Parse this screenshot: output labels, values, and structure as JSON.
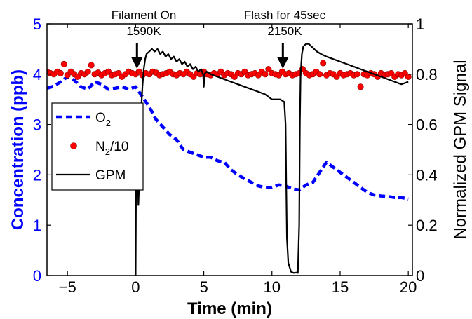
{
  "chart_data": {
    "type": "line",
    "xlabel": "Time (min)",
    "ylabel_left": "Concentration (ppb)",
    "ylabel_right": "Normalized GPM Signal",
    "xlim": [
      -6.5,
      20.3
    ],
    "ylim_left": [
      0,
      5
    ],
    "ylim_right": [
      0,
      1
    ],
    "x_ticks": [
      -5,
      0,
      5,
      10,
      15,
      20
    ],
    "x_tick_labels": [
      "−5",
      "0",
      "5",
      "10",
      "15",
      "20"
    ],
    "y_left_ticks": [
      0,
      1,
      2,
      3,
      4,
      5
    ],
    "y_left_tick_labels": [
      "0",
      "1",
      "2",
      "3",
      "4",
      "5"
    ],
    "y_right_ticks": [
      0,
      0.2,
      0.4,
      0.6,
      0.8,
      1
    ],
    "y_right_tick_labels": [
      "0",
      "0.2",
      "0.4",
      "0.6",
      "0.8",
      "1"
    ],
    "grid": false,
    "legend": {
      "placement": "left",
      "entries": [
        {
          "base": "O",
          "sub": "2",
          "rest": ""
        },
        {
          "base": "N",
          "sub": "2",
          "rest": "/10"
        },
        {
          "base": "GPM",
          "sub": "",
          "rest": ""
        }
      ]
    },
    "annotations": [
      {
        "line1": "Filament On",
        "line2": "1590K",
        "x": 0.1
      },
      {
        "line1": "Flash for 45sec",
        "line2": "2150K",
        "x": 10.8
      }
    ],
    "colors": {
      "o2": "#0000ff",
      "n2": "#ff0000",
      "gpm": "#000000"
    },
    "series": [
      {
        "name": "O2",
        "axis": "left",
        "style": "dashed",
        "x": [
          -6.5,
          -6.0,
          -5.5,
          -5.0,
          -4.5,
          -4.0,
          -3.5,
          -3.0,
          -2.5,
          -2.0,
          -1.5,
          -1.0,
          -0.5,
          0.0,
          0.5,
          1.0,
          1.5,
          2.0,
          2.5,
          3.0,
          3.5,
          4.0,
          4.5,
          5.0,
          5.5,
          6.0,
          6.5,
          7.0,
          7.5,
          8.0,
          8.5,
          9.0,
          9.5,
          10.0,
          10.5,
          11.0,
          11.5,
          12.0,
          12.5,
          13.0,
          13.5,
          14.0,
          14.5,
          15.0,
          15.5,
          16.0,
          16.5,
          17.0,
          17.5,
          18.0,
          18.5,
          19.0,
          19.5,
          20.0
        ],
        "values": [
          3.72,
          3.76,
          3.85,
          3.95,
          3.88,
          3.75,
          3.7,
          3.85,
          3.8,
          3.7,
          3.72,
          3.75,
          3.7,
          3.75,
          3.55,
          3.35,
          3.1,
          2.95,
          2.8,
          2.7,
          2.5,
          2.45,
          2.4,
          2.35,
          2.35,
          2.28,
          2.25,
          2.1,
          2.0,
          1.92,
          1.85,
          1.78,
          1.75,
          1.75,
          1.8,
          1.78,
          1.72,
          1.7,
          1.8,
          1.85,
          2.05,
          2.25,
          2.15,
          2.05,
          1.95,
          1.85,
          1.75,
          1.65,
          1.6,
          1.58,
          1.57,
          1.55,
          1.55,
          1.52
        ]
      },
      {
        "name": "N2/10",
        "axis": "left",
        "style": "markers",
        "x": [
          -6.5,
          -6.25,
          -6.0,
          -5.75,
          -5.5,
          -5.25,
          -5.0,
          -4.75,
          -4.5,
          -4.25,
          -4.0,
          -3.75,
          -3.5,
          -3.25,
          -3.0,
          -2.75,
          -2.5,
          -2.25,
          -2.0,
          -1.75,
          -1.5,
          -1.25,
          -1.0,
          -0.75,
          -0.5,
          -0.25,
          0.0,
          0.25,
          0.5,
          0.75,
          1.0,
          1.25,
          1.5,
          1.75,
          2.0,
          2.25,
          2.5,
          2.75,
          3.0,
          3.25,
          3.5,
          3.75,
          4.0,
          4.25,
          4.5,
          4.75,
          5.0,
          5.25,
          5.5,
          5.75,
          6.0,
          6.25,
          6.5,
          6.75,
          7.0,
          7.25,
          7.5,
          7.75,
          8.0,
          8.25,
          8.5,
          8.75,
          9.0,
          9.25,
          9.5,
          9.75,
          10.0,
          10.25,
          10.5,
          10.75,
          11.0,
          11.25,
          11.5,
          11.75,
          12.0,
          12.25,
          12.5,
          12.75,
          13.0,
          13.25,
          13.5,
          13.75,
          14.0,
          14.25,
          14.5,
          14.75,
          15.0,
          15.25,
          15.5,
          15.75,
          16.0,
          16.25,
          16.5,
          16.75,
          17.0,
          17.25,
          17.5,
          17.75,
          18.0,
          18.25,
          18.5,
          18.75,
          19.0,
          19.25,
          19.5,
          19.75,
          20.0
        ],
        "values": [
          4.05,
          4.02,
          4.0,
          4.05,
          4.02,
          4.2,
          3.98,
          4.05,
          4.0,
          3.95,
          4.02,
          4.0,
          4.05,
          4.18,
          4.0,
          4.03,
          3.98,
          4.02,
          4.05,
          3.98,
          4.0,
          4.02,
          3.95,
          4.0,
          4.05,
          4.02,
          4.0,
          4.05,
          3.98,
          4.02,
          4.0,
          4.05,
          4.03,
          3.98,
          4.0,
          4.02,
          4.05,
          4.0,
          3.98,
          4.02,
          4.0,
          4.05,
          4.0,
          3.95,
          4.02,
          4.0,
          4.05,
          4.0,
          3.98,
          4.02,
          4.0,
          4.05,
          3.98,
          4.02,
          4.0,
          3.95,
          4.02,
          4.0,
          4.05,
          3.98,
          4.0,
          4.02,
          3.98,
          4.05,
          4.0,
          4.1,
          4.02,
          4.0,
          3.98,
          4.05,
          4.0,
          4.02,
          3.98,
          4.0,
          4.02,
          4.1,
          4.02,
          3.98,
          4.0,
          4.05,
          4.0,
          4.22,
          3.98,
          4.02,
          4.0,
          3.95,
          4.02,
          3.98,
          4.0,
          4.02,
          3.98,
          4.0,
          3.75,
          4.0,
          3.98,
          4.02,
          4.0,
          3.95,
          4.02,
          3.98,
          4.0,
          4.02,
          3.95,
          4.0,
          3.98,
          4.02,
          3.95
        ]
      },
      {
        "name": "GPM",
        "axis": "right",
        "style": "solid",
        "x": [
          0.0,
          0.05,
          0.1,
          0.15,
          0.2,
          0.25,
          0.3,
          0.35,
          0.4,
          0.5,
          0.6,
          0.7,
          0.8,
          1.0,
          1.2,
          1.4,
          1.6,
          1.8,
          2.0,
          2.2,
          2.4,
          2.6,
          2.8,
          3.0,
          3.2,
          3.4,
          3.6,
          3.8,
          4.0,
          4.2,
          4.4,
          4.6,
          4.8,
          4.95,
          5.0,
          5.05,
          5.2,
          5.5,
          6.0,
          6.5,
          7.0,
          7.5,
          8.0,
          8.5,
          9.0,
          9.5,
          10.0,
          10.3,
          10.6,
          10.9,
          11.0,
          11.05,
          11.1,
          11.2,
          11.4,
          11.6,
          11.8,
          11.9,
          12.0,
          12.05,
          12.1,
          12.2,
          12.3,
          12.5,
          12.7,
          12.9,
          13.1,
          13.3,
          13.6,
          14.0,
          14.5,
          15.0,
          15.5,
          16.0,
          16.5,
          17.0,
          17.5,
          18.0,
          18.5,
          19.0,
          19.5,
          20.0
        ],
        "values": [
          0.0,
          0.56,
          0.53,
          0.5,
          0.28,
          0.35,
          0.4,
          0.52,
          0.65,
          0.75,
          0.82,
          0.86,
          0.88,
          0.89,
          0.9,
          0.89,
          0.9,
          0.88,
          0.89,
          0.87,
          0.88,
          0.86,
          0.87,
          0.85,
          0.86,
          0.84,
          0.85,
          0.83,
          0.84,
          0.82,
          0.83,
          0.81,
          0.82,
          0.8,
          0.75,
          0.8,
          0.81,
          0.8,
          0.79,
          0.78,
          0.77,
          0.76,
          0.75,
          0.74,
          0.73,
          0.72,
          0.7,
          0.7,
          0.7,
          0.69,
          0.6,
          0.35,
          0.15,
          0.05,
          0.015,
          0.01,
          0.012,
          0.01,
          0.2,
          0.6,
          0.8,
          0.88,
          0.91,
          0.92,
          0.92,
          0.91,
          0.9,
          0.89,
          0.88,
          0.87,
          0.86,
          0.85,
          0.84,
          0.83,
          0.82,
          0.81,
          0.8,
          0.79,
          0.78,
          0.77,
          0.76,
          0.77
        ]
      }
    ]
  }
}
